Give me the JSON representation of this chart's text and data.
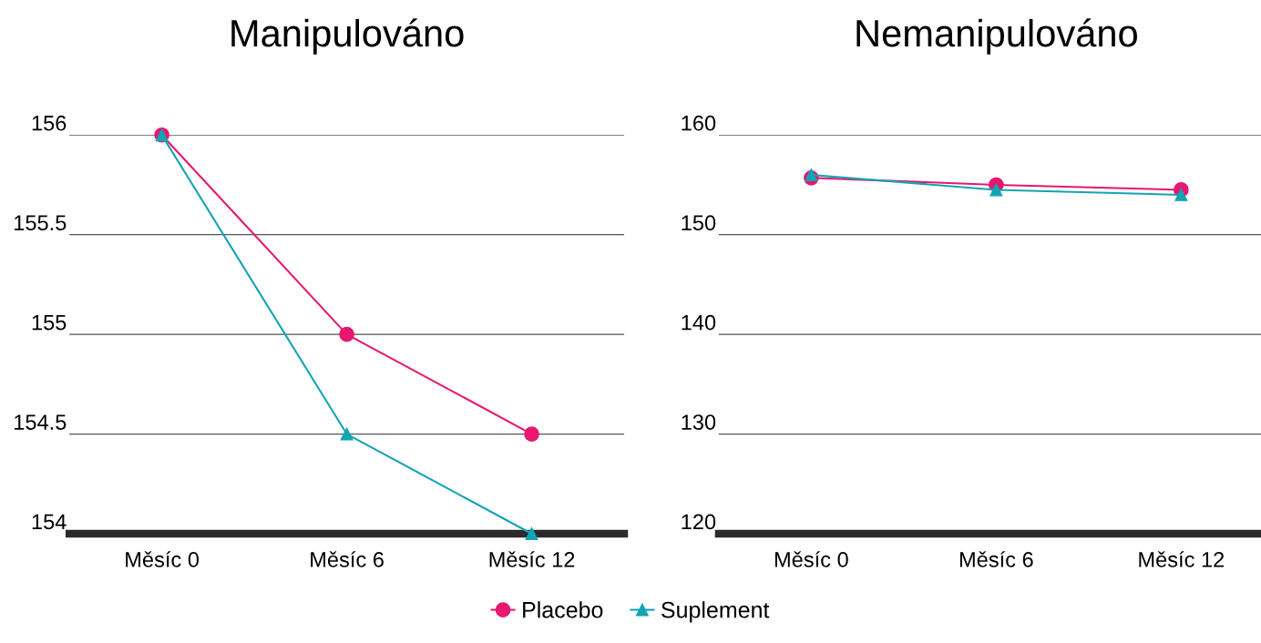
{
  "chart_data": [
    {
      "type": "line",
      "title": "Manipulováno",
      "categories": [
        "Měsíc 0",
        "Měsíc 6",
        "Měsíc 12"
      ],
      "series": [
        {
          "name": "Placebo",
          "color": "#e8176f",
          "marker": "circle",
          "values": [
            156,
            155,
            154.5
          ]
        },
        {
          "name": "Suplement",
          "color": "#12a4b5",
          "marker": "triangle",
          "values": [
            156,
            154.5,
            154
          ]
        }
      ],
      "ylim": [
        154,
        156
      ],
      "yticks": [
        154,
        154.5,
        155,
        155.5,
        156
      ],
      "grid": "y",
      "legend": "bottom"
    },
    {
      "type": "line",
      "title": "Nemanipulováno",
      "categories": [
        "Měsíc 0",
        "Měsíc 6",
        "Měsíc 12"
      ],
      "series": [
        {
          "color": "#e8176f",
          "marker": "circle",
          "values": [
            155.7,
            155,
            154.5
          ]
        },
        {
          "color": "#12a4b5",
          "marker": "triangle",
          "values": [
            156,
            154.5,
            154
          ]
        }
      ],
      "ylim": [
        120,
        160
      ],
      "yticks": [
        120,
        130,
        140,
        150,
        160
      ],
      "grid": "y",
      "legend": false
    }
  ]
}
